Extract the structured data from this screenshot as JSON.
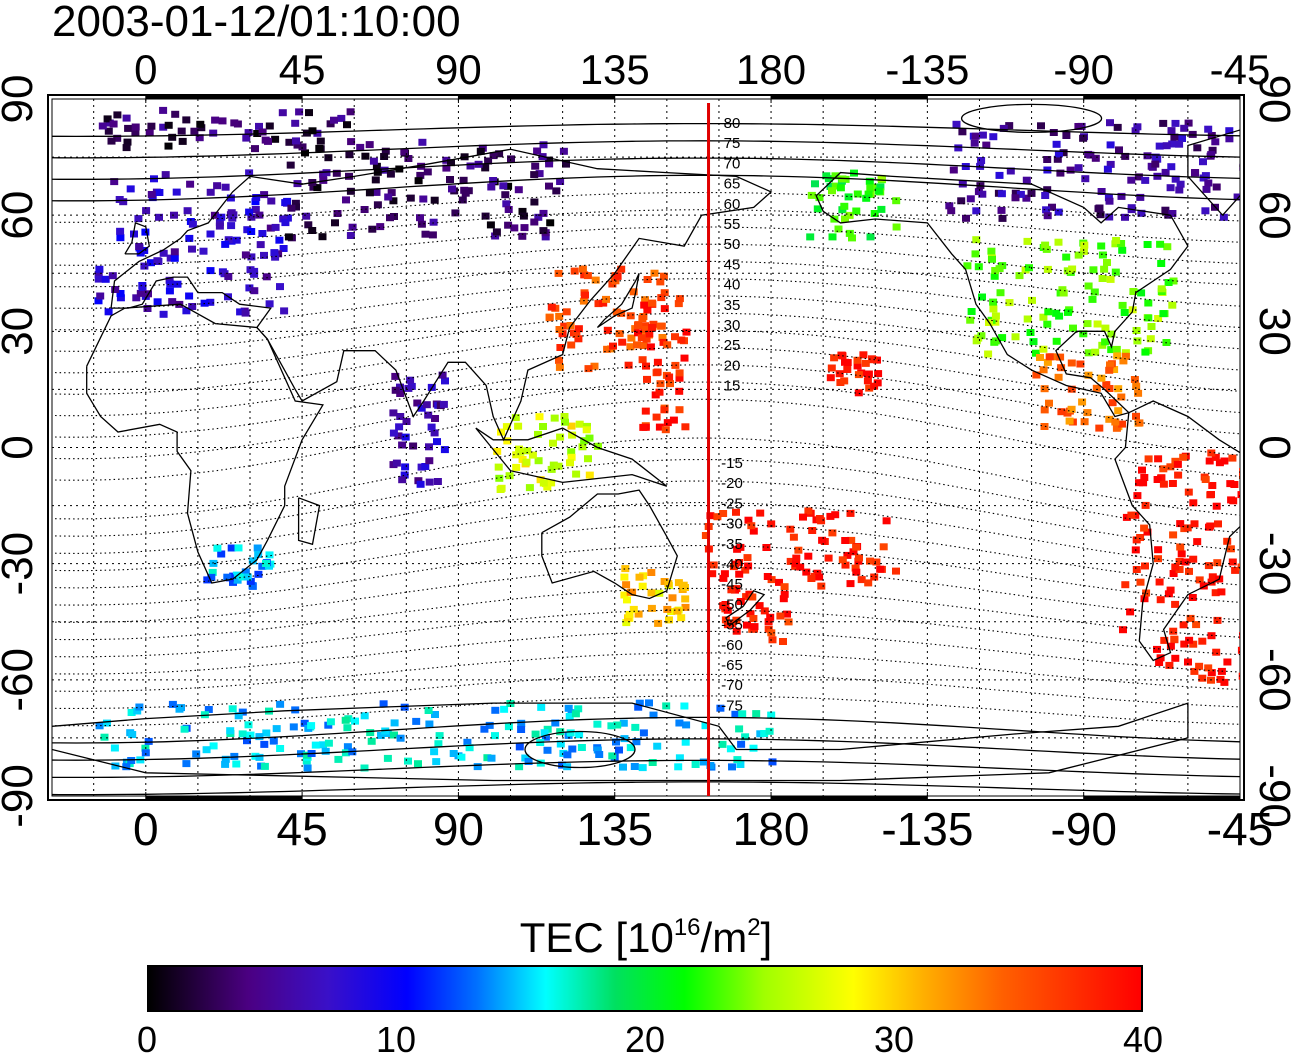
{
  "timestamp": "2003-01-12/01:10:00",
  "map": {
    "lon_ticks": [
      0,
      45,
      90,
      135,
      180,
      225,
      270,
      315
    ],
    "lon_tick_labels": [
      "0",
      "45",
      "90",
      "135",
      "180",
      "-135",
      "-90",
      "-45"
    ],
    "lat_ticks": [
      90,
      60,
      30,
      0,
      -30,
      -60,
      -90
    ],
    "lat_tick_labels": [
      "90",
      "60",
      "30",
      "0",
      "-30",
      "-60",
      "-90"
    ],
    "lon_range": [
      -27,
      315
    ],
    "lat_range": [
      -90,
      90
    ],
    "meridian_line_lon": 162,
    "meridian_line_color": "#e00000",
    "contour_labels_north": [
      "80",
      "75",
      "70",
      "65",
      "60",
      "55",
      "50",
      "45",
      "40",
      "35",
      "30",
      "25",
      "20",
      "15"
    ],
    "contour_labels_south": [
      "-15",
      "-20",
      "-25",
      "-30",
      "-35",
      "-40",
      "-45",
      "-50",
      "-55",
      "-60",
      "-65",
      "-70",
      "-75"
    ],
    "grid": true
  },
  "colorbar": {
    "title": "TEC  [10",
    "title_sup1": "16",
    "title_mid": "/m",
    "title_sup2": "2",
    "title_end": "]",
    "ticks": [
      "0",
      "10",
      "20",
      "30",
      "40"
    ],
    "range": [
      0,
      40
    ]
  },
  "tec_regions": [
    {
      "name": "europe",
      "lon": [
        -15,
        40
      ],
      "lat": [
        35,
        72
      ],
      "tec": 7
    },
    {
      "name": "siberia",
      "lon": [
        40,
        120
      ],
      "lat": [
        55,
        80
      ],
      "tec": 3
    },
    {
      "name": "arctic-west",
      "lon": [
        -15,
        60
      ],
      "lat": [
        78,
        88
      ],
      "tec": 3
    },
    {
      "name": "east-asia",
      "lon": [
        115,
        150
      ],
      "lat": [
        20,
        48
      ],
      "tec": 36
    },
    {
      "name": "japan-pacific",
      "lon": [
        140,
        155
      ],
      "lat": [
        5,
        40
      ],
      "tec": 38
    },
    {
      "name": "alaska",
      "lon": [
        190,
        215
      ],
      "lat": [
        55,
        72
      ],
      "tec": 22
    },
    {
      "name": "north-america",
      "lon": [
        235,
        295
      ],
      "lat": [
        25,
        55
      ],
      "tec": 24
    },
    {
      "name": "canada-arctic",
      "lon": [
        230,
        315
      ],
      "lat": [
        60,
        85
      ],
      "tec": 5
    },
    {
      "name": "central-america",
      "lon": [
        255,
        285
      ],
      "lat": [
        5,
        25
      ],
      "tec": 34
    },
    {
      "name": "hawaii",
      "lon": [
        195,
        210
      ],
      "lat": [
        15,
        25
      ],
      "tec": 39
    },
    {
      "name": "south-america",
      "lon": [
        280,
        320
      ],
      "lat": [
        -60,
        0
      ],
      "tec": 39
    },
    {
      "name": "south-pacific",
      "lon": [
        160,
        215
      ],
      "lat": [
        -35,
        -15
      ],
      "tec": 39
    },
    {
      "name": "new-zealand",
      "lon": [
        165,
        185
      ],
      "lat": [
        -50,
        -35
      ],
      "tec": 38
    },
    {
      "name": "australia",
      "lon": [
        135,
        155
      ],
      "lat": [
        -45,
        -30
      ],
      "tec": 30
    },
    {
      "name": "south-africa",
      "lon": [
        15,
        35
      ],
      "lat": [
        -35,
        -25
      ],
      "tec": 14
    },
    {
      "name": "antarctic",
      "lon": [
        -15,
        180
      ],
      "lat": [
        -82,
        -65
      ],
      "tec": 15
    },
    {
      "name": "indian-ocean",
      "lon": [
        70,
        85
      ],
      "lat": [
        -10,
        20
      ],
      "tec": 6
    },
    {
      "name": "indonesia",
      "lon": [
        100,
        130
      ],
      "lat": [
        -10,
        10
      ],
      "tec": 27
    }
  ]
}
